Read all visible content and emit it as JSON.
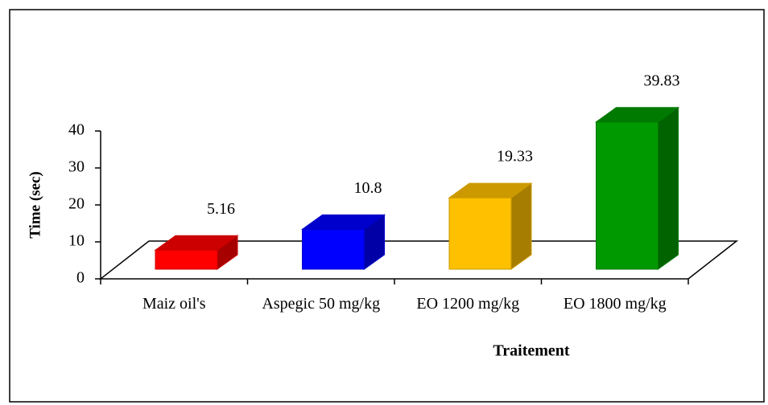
{
  "chart_data": {
    "type": "bar3d",
    "categories": [
      "Maiz oil's",
      "Aspegic 50 mg/kg",
      "EO 1200 mg/kg",
      "EO 1800 mg/kg"
    ],
    "values": [
      5.16,
      10.8,
      19.33,
      39.83
    ],
    "colors": [
      "#ff0000",
      "#0000ff",
      "#ffc000",
      "#009900"
    ],
    "ylim": [
      0,
      40
    ],
    "yticks": [
      0,
      10,
      20,
      30,
      40
    ],
    "ylabel": "Time (sec)",
    "xlabel": "Traitement"
  }
}
